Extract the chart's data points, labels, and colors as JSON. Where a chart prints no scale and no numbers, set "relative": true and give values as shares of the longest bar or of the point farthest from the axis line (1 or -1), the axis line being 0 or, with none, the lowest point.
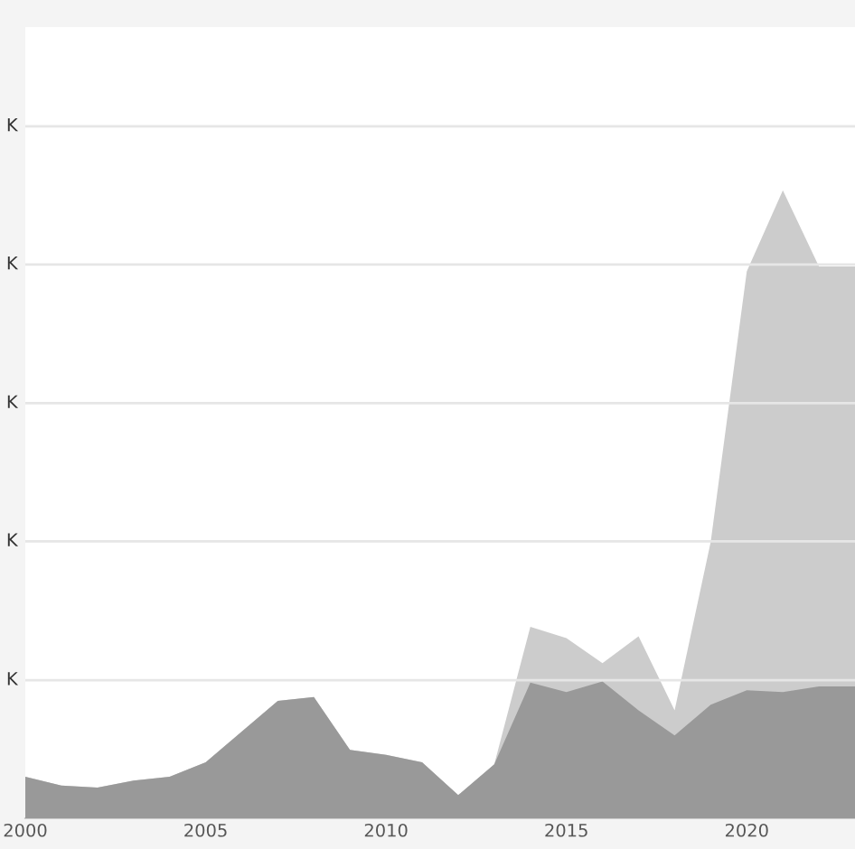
{
  "chart_data": {
    "type": "area",
    "relative": true,
    "x": [
      2000,
      2001,
      2002,
      2003,
      2004,
      2005,
      2006,
      2007,
      2008,
      2009,
      2010,
      2011,
      2012,
      2013,
      2014,
      2015,
      2016,
      2017,
      2018,
      2019,
      2020,
      2021,
      2022,
      2023
    ],
    "series": [
      {
        "color": "#cccccc",
        "values": [
          0.066,
          0.052,
          0.049,
          0.06,
          0.066,
          0.089,
          0.138,
          0.187,
          0.193,
          0.109,
          0.101,
          0.089,
          0.037,
          0.086,
          0.305,
          0.287,
          0.247,
          0.29,
          0.172,
          0.44,
          0.871,
          1.0,
          0.879,
          0.879
        ]
      },
      {
        "color": "#999999",
        "values": [
          0.066,
          0.052,
          0.049,
          0.06,
          0.066,
          0.089,
          0.138,
          0.187,
          0.193,
          0.109,
          0.101,
          0.089,
          0.037,
          0.086,
          0.216,
          0.201,
          0.218,
          0.172,
          0.132,
          0.181,
          0.204,
          0.201,
          0.21,
          0.21
        ]
      }
    ],
    "xlim": [
      2000,
      2023
    ],
    "xticks": [
      2000,
      2005,
      2010,
      2015,
      2020
    ],
    "ref_lines": [
      {
        "axis": "y",
        "value": 0.22,
        "label": "K",
        "color": "#e6e6e6"
      },
      {
        "axis": "y",
        "value": 0.441,
        "label": "K",
        "color": "#e6e6e6"
      },
      {
        "axis": "y",
        "value": 0.661,
        "label": "K",
        "color": "#e6e6e6"
      },
      {
        "axis": "y",
        "value": 0.882,
        "label": "K",
        "color": "#e6e6e6"
      },
      {
        "axis": "y",
        "value": 1.102,
        "label": "K",
        "color": "#e6e6e6"
      }
    ]
  }
}
